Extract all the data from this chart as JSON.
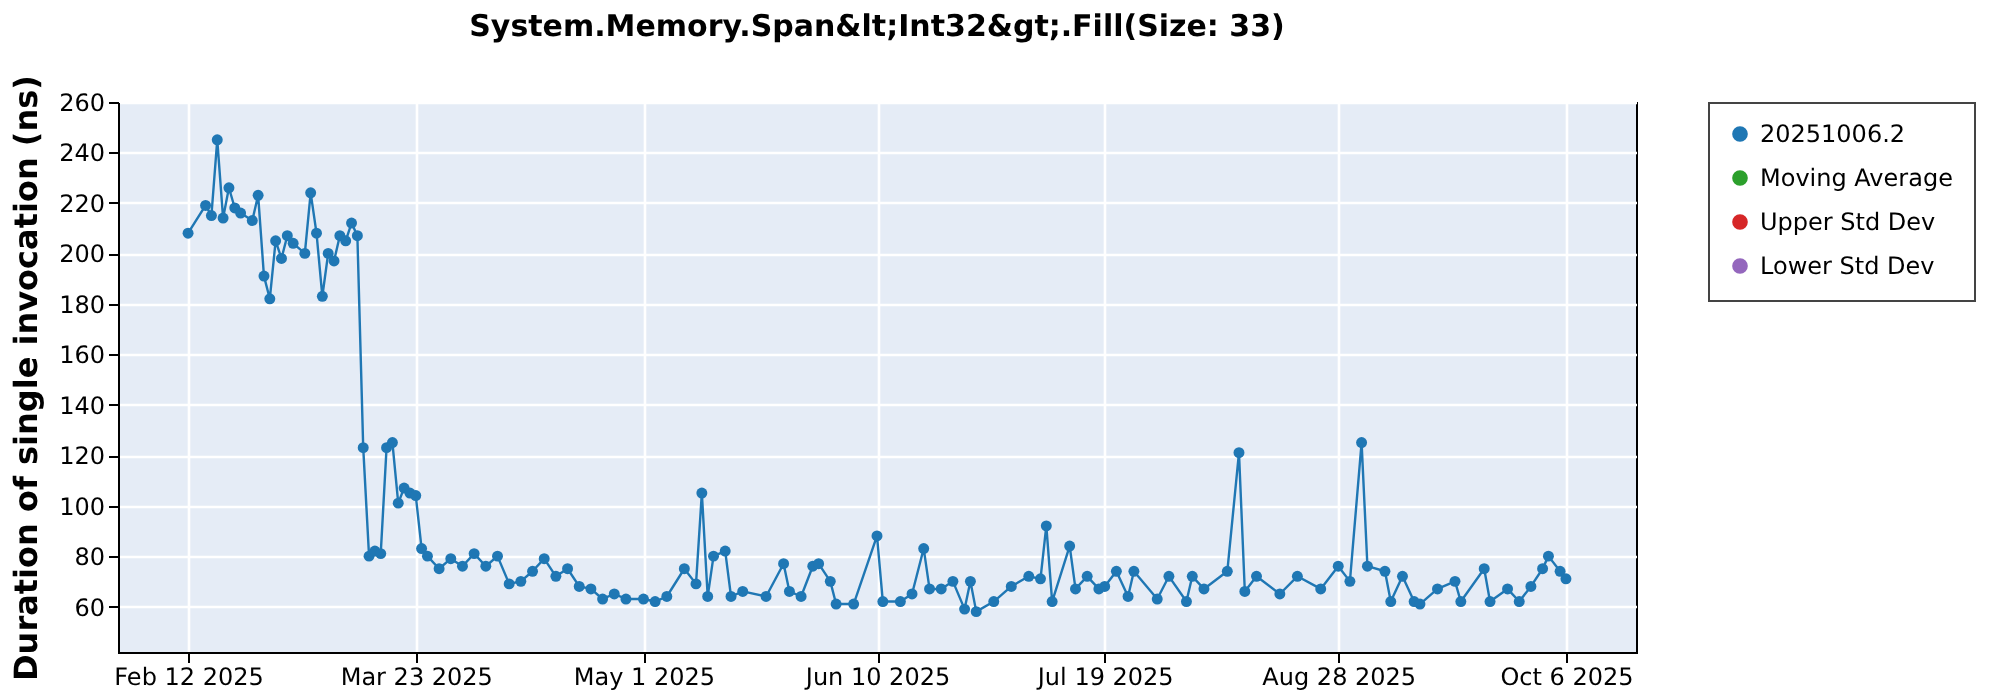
{
  "chart_data": {
    "type": "line",
    "title": "System.Memory.Span&lt;Int32&gt;.Fill(Size: 33)",
    "ylabel": "Duration of single invocation (ns)",
    "xlim": [
      "2025-01-31",
      "2025-10-18"
    ],
    "ylim": [
      42,
      260
    ],
    "xticks": [
      {
        "value": "2025-02-12",
        "label": "Feb 12 2025"
      },
      {
        "value": "2025-03-23",
        "label": "Mar 23 2025"
      },
      {
        "value": "2025-05-01",
        "label": "May 1 2025"
      },
      {
        "value": "2025-06-10",
        "label": "Jun 10 2025"
      },
      {
        "value": "2025-07-19",
        "label": "Jul 19 2025"
      },
      {
        "value": "2025-08-28",
        "label": "Aug 28 2025"
      },
      {
        "value": "2025-10-06",
        "label": "Oct 6 2025"
      }
    ],
    "yticks": [
      60,
      80,
      100,
      120,
      140,
      160,
      180,
      200,
      220,
      240,
      260
    ],
    "grid": true,
    "legend": "right",
    "marker": "circle",
    "line_style": "solid",
    "series": [
      {
        "name": "20251006.2",
        "color": "#1f77b4",
        "x": [
          "2025-02-12",
          "2025-02-15",
          "2025-02-16",
          "2025-02-17",
          "2025-02-18",
          "2025-02-19",
          "2025-02-20",
          "2025-02-21",
          "2025-02-23",
          "2025-02-24",
          "2025-02-25",
          "2025-02-26",
          "2025-02-27",
          "2025-02-28",
          "2025-03-01",
          "2025-03-02",
          "2025-03-04",
          "2025-03-05",
          "2025-03-06",
          "2025-03-07",
          "2025-03-08",
          "2025-03-09",
          "2025-03-10",
          "2025-03-11",
          "2025-03-12",
          "2025-03-13",
          "2025-03-14",
          "2025-03-15",
          "2025-03-16",
          "2025-03-17",
          "2025-03-18",
          "2025-03-19",
          "2025-03-20",
          "2025-03-21",
          "2025-03-22",
          "2025-03-23",
          "2025-03-24",
          "2025-03-25",
          "2025-03-27",
          "2025-03-29",
          "2025-03-31",
          "2025-04-02",
          "2025-04-04",
          "2025-04-06",
          "2025-04-08",
          "2025-04-10",
          "2025-04-12",
          "2025-04-14",
          "2025-04-16",
          "2025-04-18",
          "2025-04-20",
          "2025-04-22",
          "2025-04-24",
          "2025-04-26",
          "2025-04-28",
          "2025-05-01",
          "2025-05-03",
          "2025-05-05",
          "2025-05-08",
          "2025-05-10",
          "2025-05-11",
          "2025-05-12",
          "2025-05-13",
          "2025-05-15",
          "2025-05-16",
          "2025-05-18",
          "2025-05-22",
          "2025-05-25",
          "2025-05-26",
          "2025-05-28",
          "2025-05-30",
          "2025-05-31",
          "2025-06-02",
          "2025-06-03",
          "2025-06-06",
          "2025-06-10",
          "2025-06-11",
          "2025-06-14",
          "2025-06-16",
          "2025-06-18",
          "2025-06-19",
          "2025-06-21",
          "2025-06-23",
          "2025-06-25",
          "2025-06-26",
          "2025-06-27",
          "2025-06-30",
          "2025-07-03",
          "2025-07-06",
          "2025-07-08",
          "2025-07-09",
          "2025-07-10",
          "2025-07-13",
          "2025-07-14",
          "2025-07-16",
          "2025-07-18",
          "2025-07-19",
          "2025-07-21",
          "2025-07-23",
          "2025-07-24",
          "2025-07-28",
          "2025-07-30",
          "2025-08-02",
          "2025-08-03",
          "2025-08-05",
          "2025-08-09",
          "2025-08-11",
          "2025-08-12",
          "2025-08-14",
          "2025-08-18",
          "2025-08-21",
          "2025-08-25",
          "2025-08-28",
          "2025-08-30",
          "2025-09-01",
          "2025-09-02",
          "2025-09-05",
          "2025-09-06",
          "2025-09-08",
          "2025-09-10",
          "2025-09-11",
          "2025-09-14",
          "2025-09-17",
          "2025-09-18",
          "2025-09-22",
          "2025-09-23",
          "2025-09-26",
          "2025-09-28",
          "2025-09-30",
          "2025-10-02",
          "2025-10-03",
          "2025-10-05",
          "2025-10-06"
        ],
        "values": [
          208,
          219,
          215,
          245,
          214,
          226,
          218,
          216,
          213,
          223,
          191,
          182,
          205,
          198,
          207,
          204,
          200,
          224,
          208,
          183,
          200,
          197,
          207,
          205,
          212,
          207,
          123,
          80,
          82,
          81,
          123,
          125,
          101,
          107,
          105,
          104,
          83,
          80,
          75,
          79,
          76,
          81,
          76,
          80,
          69,
          70,
          74,
          79,
          72,
          75,
          68,
          67,
          63,
          65,
          63,
          63,
          62,
          64,
          75,
          69,
          105,
          64,
          80,
          82,
          64,
          66,
          64,
          77,
          66,
          64,
          76,
          77,
          70,
          61,
          61,
          88,
          62,
          62,
          65,
          83,
          67,
          67,
          70,
          59,
          70,
          58,
          62,
          68,
          72,
          71,
          92,
          62,
          84,
          67,
          72,
          67,
          68,
          74,
          64,
          74,
          63,
          72,
          62,
          72,
          67,
          74,
          121,
          66,
          72,
          65,
          72,
          67,
          76,
          70,
          125,
          76,
          74,
          62,
          72,
          62,
          61,
          67,
          70,
          62,
          75,
          62,
          67,
          62,
          68,
          75,
          80,
          74,
          71
        ]
      },
      {
        "name": "Moving Average",
        "color": "#2ca02c"
      },
      {
        "name": "Upper Std Dev",
        "color": "#d62728"
      },
      {
        "name": "Lower Std Dev",
        "color": "#9467bd"
      }
    ]
  }
}
